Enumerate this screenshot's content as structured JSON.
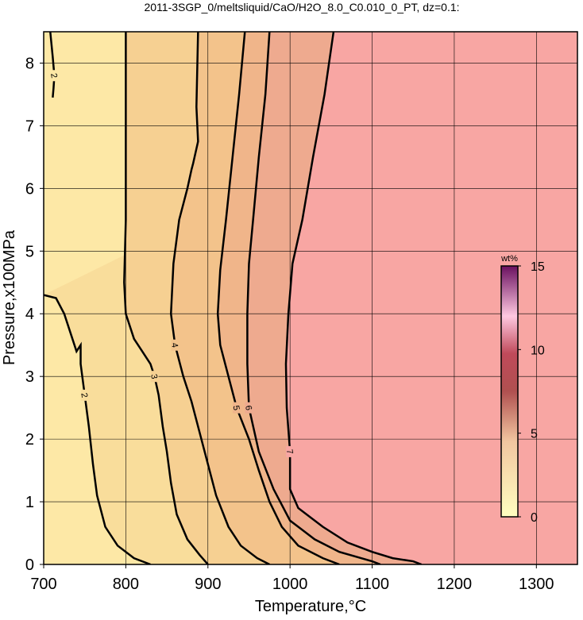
{
  "chart_data": {
    "type": "contour",
    "title": "2011-3SGP_0/meltsliquid/CaO/H2O_8.0_C0.010_0_PT, dz=0.1:",
    "x_label": "Temperature,°C",
    "y_label": "Pressure,x100MPa",
    "xlim": [
      700,
      1350
    ],
    "ylim": [
      0,
      8.5
    ],
    "xticks": [
      700,
      800,
      900,
      1000,
      1100,
      1200,
      1300
    ],
    "yticks": [
      0,
      1,
      2,
      3,
      4,
      5,
      6,
      7,
      8
    ],
    "grid": true,
    "background_color": "#fde8a6",
    "contours": [
      {
        "level": 2,
        "color": "#000",
        "fill": null,
        "x": [
          708,
          711,
          713,
          712,
          711
        ],
        "y": [
          8.5,
          8.1,
          7.8,
          7.6,
          7.45
        ]
      },
      {
        "level": 2,
        "color": "#000",
        "fill": "#f9dd9b",
        "x": [
          700,
          715,
          725,
          735,
          740,
          745,
          745,
          750,
          755,
          760,
          765,
          775,
          790,
          810,
          830
        ],
        "y": [
          4.3,
          4.25,
          4.0,
          3.6,
          3.4,
          3.5,
          3.2,
          2.7,
          2.2,
          1.6,
          1.1,
          0.6,
          0.3,
          0.1,
          0
        ]
      },
      {
        "level": 3,
        "color": "#000",
        "fill": "#f6d092",
        "x": [
          800,
          800,
          800,
          798,
          800,
          810,
          820,
          830,
          835,
          840,
          845,
          850,
          855,
          862,
          875,
          890,
          900
        ],
        "y": [
          8.5,
          7,
          5.5,
          4.5,
          4.0,
          3.6,
          3.4,
          3.2,
          3.0,
          2.7,
          2.2,
          1.8,
          1.3,
          0.8,
          0.4,
          0.15,
          0
        ]
      },
      {
        "level": 4,
        "color": "#000",
        "fill": "#f3c38b",
        "x": [
          888,
          886,
          888,
          882,
          880,
          875,
          865,
          858,
          855,
          860,
          870,
          880,
          890,
          900,
          910,
          925,
          940,
          960,
          975
        ],
        "y": [
          8.5,
          7.3,
          6.75,
          6.4,
          6.3,
          6.0,
          5.5,
          4.8,
          4.0,
          3.5,
          3.0,
          2.6,
          2.1,
          1.6,
          1.1,
          0.6,
          0.3,
          0.1,
          0
        ]
      },
      {
        "level": 5,
        "color": "#000",
        "fill": "#f0b58a",
        "x": [
          945,
          938,
          930,
          922,
          915,
          912,
          915,
          925,
          935,
          950,
          962,
          975,
          990,
          1010,
          1040,
          1060
        ],
        "y": [
          8.5,
          7.5,
          6.5,
          5.5,
          4.7,
          4.0,
          3.5,
          3.0,
          2.5,
          2.0,
          1.5,
          1.0,
          0.6,
          0.3,
          0.1,
          0
        ]
      },
      {
        "level": 6,
        "color": "#000",
        "fill": "#eeaa8f",
        "x": [
          975,
          970,
          962,
          955,
          950,
          948,
          948,
          950,
          962,
          980,
          1000,
          1030,
          1060,
          1100,
          1110
        ],
        "y": [
          8.5,
          7.5,
          6.5,
          5.5,
          4.8,
          4.0,
          3.2,
          2.5,
          1.8,
          1.2,
          0.7,
          0.4,
          0.2,
          0.05,
          0
        ]
      },
      {
        "level": 7,
        "color": "#000",
        "fill": "#f8a6a3",
        "x": [
          1053,
          1042,
          1028,
          1015,
          1003,
          998,
          995,
          996,
          1000,
          1000,
          1010,
          1040,
          1070,
          1100,
          1125,
          1150,
          1160
        ],
        "y": [
          8.5,
          7.5,
          6.5,
          5.5,
          4.8,
          4.0,
          3.2,
          2.5,
          1.8,
          1.2,
          0.9,
          0.6,
          0.35,
          0.2,
          0.1,
          0.05,
          0
        ]
      }
    ],
    "colorbar": {
      "label": "wt%",
      "lim": [
        0,
        15
      ],
      "ticks": [
        0,
        5,
        10,
        15
      ]
    }
  }
}
